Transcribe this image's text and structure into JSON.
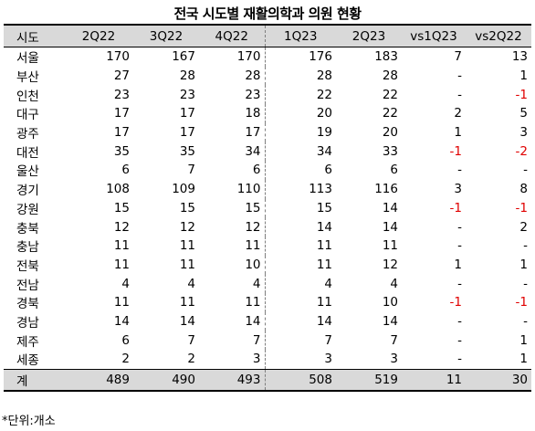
{
  "chart_data": {
    "type": "table",
    "title": "전국 시도별 재활의학과 의원 현황",
    "columns": [
      "시도",
      "2Q22",
      "3Q22",
      "4Q22",
      "1Q23",
      "2Q23",
      "vs1Q23",
      "vs2Q22"
    ],
    "rows": [
      {
        "region": "서울",
        "values": [
          "170",
          "167",
          "170",
          "176",
          "183",
          "7",
          "13"
        ]
      },
      {
        "region": "부산",
        "values": [
          "27",
          "28",
          "28",
          "28",
          "28",
          "-",
          "1"
        ]
      },
      {
        "region": "인천",
        "values": [
          "23",
          "23",
          "23",
          "22",
          "22",
          "-",
          "-1"
        ]
      },
      {
        "region": "대구",
        "values": [
          "17",
          "17",
          "18",
          "20",
          "22",
          "2",
          "5"
        ]
      },
      {
        "region": "광주",
        "values": [
          "17",
          "17",
          "17",
          "19",
          "20",
          "1",
          "3"
        ]
      },
      {
        "region": "대전",
        "values": [
          "35",
          "35",
          "34",
          "34",
          "33",
          "-1",
          "-2"
        ]
      },
      {
        "region": "울산",
        "values": [
          "6",
          "7",
          "6",
          "6",
          "6",
          "-",
          "-"
        ]
      },
      {
        "region": "경기",
        "values": [
          "108",
          "109",
          "110",
          "113",
          "116",
          "3",
          "8"
        ]
      },
      {
        "region": "강원",
        "values": [
          "15",
          "15",
          "15",
          "15",
          "14",
          "-1",
          "-1"
        ]
      },
      {
        "region": "충북",
        "values": [
          "12",
          "12",
          "12",
          "14",
          "14",
          "-",
          "2"
        ]
      },
      {
        "region": "충남",
        "values": [
          "11",
          "11",
          "11",
          "11",
          "11",
          "-",
          "-"
        ]
      },
      {
        "region": "전북",
        "values": [
          "11",
          "11",
          "10",
          "11",
          "12",
          "1",
          "1"
        ]
      },
      {
        "region": "전남",
        "values": [
          "4",
          "4",
          "4",
          "4",
          "4",
          "-",
          "-"
        ]
      },
      {
        "region": "경북",
        "values": [
          "11",
          "11",
          "11",
          "11",
          "10",
          "-1",
          "-1"
        ]
      },
      {
        "region": "경남",
        "values": [
          "14",
          "14",
          "14",
          "14",
          "14",
          "-",
          "-"
        ]
      },
      {
        "region": "제주",
        "values": [
          "6",
          "7",
          "7",
          "7",
          "7",
          "-",
          "1"
        ]
      },
      {
        "region": "세종",
        "values": [
          "2",
          "2",
          "3",
          "3",
          "3",
          "-",
          "1"
        ]
      }
    ],
    "total": {
      "region": "계",
      "values": [
        "489",
        "490",
        "493",
        "508",
        "519",
        "11",
        "30"
      ]
    },
    "note": "*단위:개소",
    "negative_color": "#e00000",
    "header_color": "#d9d9d9"
  }
}
